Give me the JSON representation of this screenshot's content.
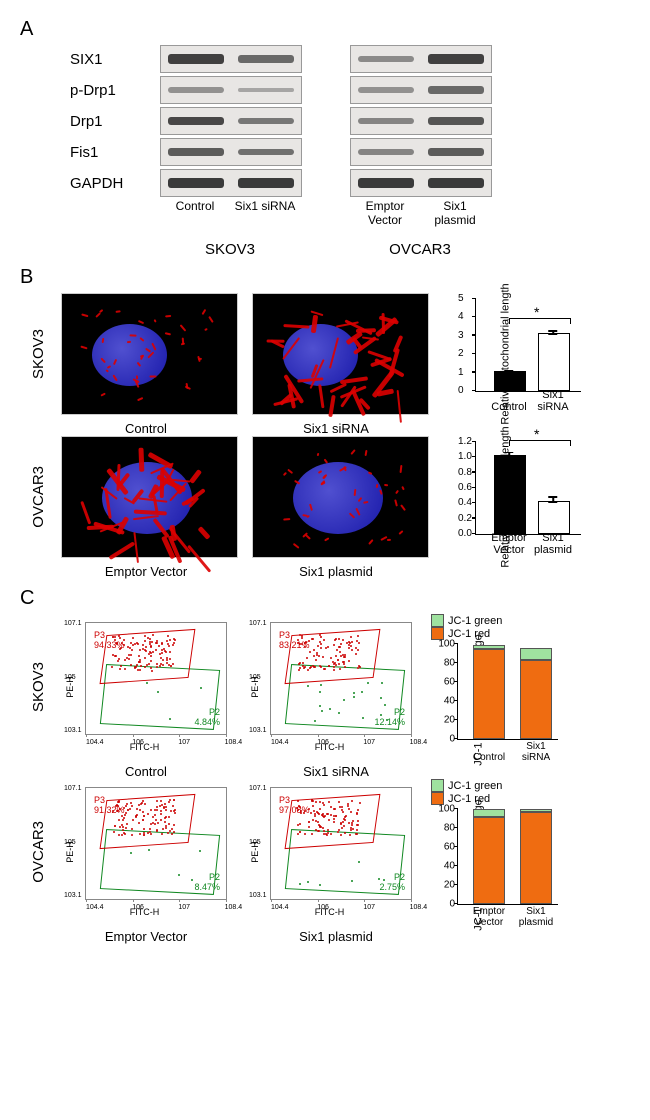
{
  "panelA": {
    "label": "A",
    "proteins": [
      "SIX1",
      "p-Drp1",
      "Drp1",
      "Fis1",
      "GAPDH"
    ],
    "skov3": {
      "conditions": [
        "Control",
        "Six1 siRNA"
      ],
      "band_intensity": [
        [
          0.9,
          0.6
        ],
        [
          0.3,
          0.15
        ],
        [
          0.85,
          0.5
        ],
        [
          0.7,
          0.55
        ],
        [
          0.95,
          0.95
        ]
      ]
    },
    "ovcar3": {
      "conditions": [
        "Emptor\nVector",
        "Six1\nplasmid"
      ],
      "band_intensity": [
        [
          0.35,
          0.9
        ],
        [
          0.3,
          0.6
        ],
        [
          0.4,
          0.75
        ],
        [
          0.4,
          0.7
        ],
        [
          0.95,
          0.95
        ]
      ]
    },
    "cell_lines": [
      "SKOV3",
      "OVCAR3"
    ]
  },
  "panelB": {
    "label": "B",
    "rows": [
      {
        "cell_line": "SKOV3",
        "img_labels": [
          "Control",
          "Six1 siRNA"
        ],
        "chart": {
          "ylabel": "Relative\nmitochondrial length",
          "ymax": 5,
          "ytick_step": 1,
          "bars": [
            {
              "x": 18,
              "h": 1.0,
              "err": 0.15,
              "fill": "#000000",
              "label": "Control"
            },
            {
              "x": 62,
              "h": 3.05,
              "err": 0.25,
              "fill": "#ffffff",
              "label": "Six1 siRNA"
            }
          ],
          "sig": "*"
        }
      },
      {
        "cell_line": "OVCAR3",
        "img_labels": [
          "Emptor  Vector",
          "Six1  plasmid"
        ],
        "chart": {
          "ylabel": "Relative\nmitochondrial length",
          "ymax": 1.2,
          "ytick_step": 0.2,
          "bars": [
            {
              "x": 18,
              "h": 1.0,
              "err": 0.07,
              "fill": "#000000",
              "label": "Emptor\nVector"
            },
            {
              "x": 62,
              "h": 0.4,
              "err": 0.09,
              "fill": "#ffffff",
              "label": "Six1\nplasmid"
            }
          ],
          "sig": "*"
        }
      }
    ]
  },
  "panelC": {
    "label": "C",
    "legend": [
      {
        "label": "JC-1 green",
        "color": "#9fe29f"
      },
      {
        "label": "JC-1 red",
        "color": "#ef6c11"
      }
    ],
    "rows": [
      {
        "cell_line": "SKOV3",
        "sub_labels": [
          "Control",
          "Six1 siRNA"
        ],
        "plots": [
          {
            "p3": "P3\n94.33%",
            "p2": "P2\n4.84%"
          },
          {
            "p3": "P3\n83.21%",
            "p2": "P2\n12.14%"
          }
        ],
        "chart": {
          "ylabel": "JC-1 red/green\npercentage",
          "ymax": 100,
          "ytick_step": 20,
          "bars": [
            {
              "x": 15,
              "label": "Control",
              "red": 94.3,
              "green": 4.8
            },
            {
              "x": 62,
              "label": "Six1 siRNA",
              "red": 83.2,
              "green": 12.1
            }
          ]
        }
      },
      {
        "cell_line": "OVCAR3",
        "sub_labels": [
          "Emptor Vector",
          "Six1 plasmid"
        ],
        "plots": [
          {
            "p3": "P3\n91.32%",
            "p2": "P2\n8.47%"
          },
          {
            "p3": "P3\n97.08%",
            "p2": "P2\n2.75%"
          }
        ],
        "chart": {
          "ylabel": "JC-1 red/green\npercentage",
          "ymax": 100,
          "ytick_step": 20,
          "bars": [
            {
              "x": 15,
              "label": "Emptor\nVector",
              "red": 91.3,
              "green": 8.5
            },
            {
              "x": 62,
              "label": "Six1\nplasmid",
              "red": 97.1,
              "green": 2.8
            }
          ]
        }
      }
    ],
    "cyto_axes": {
      "x": "FITC-H",
      "y": "PE-H"
    }
  },
  "colors": {
    "red": "#cc0000",
    "green": "#118822",
    "jc1_red": "#ef6c11",
    "jc1_green": "#9fe29f"
  }
}
